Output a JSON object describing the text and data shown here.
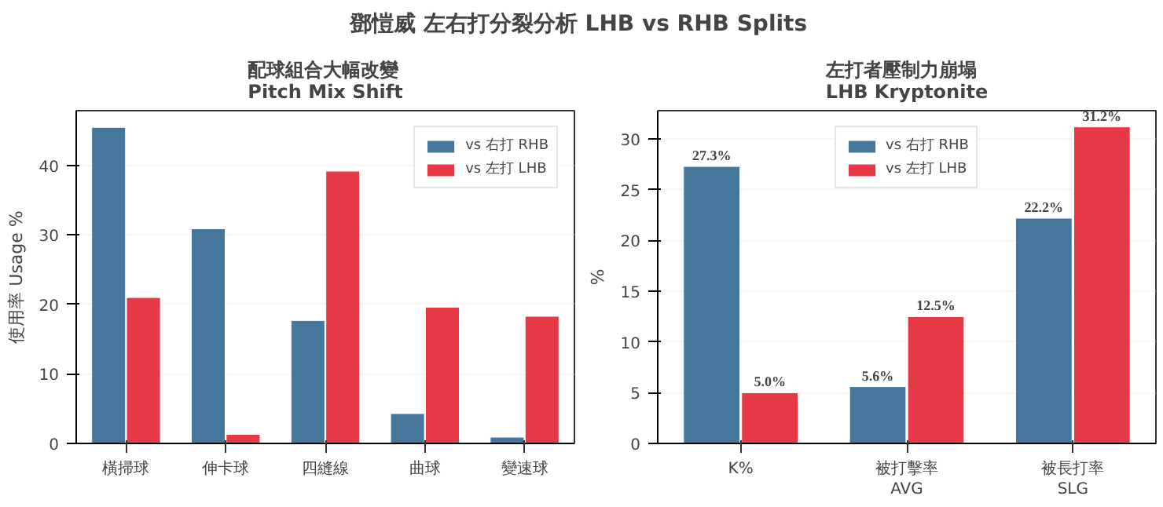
{
  "chart_data": [
    {
      "type": "other",
      "title": "鄧愷威 左右打分裂分析  LHB vs RHB Splits"
    },
    {
      "type": "bar",
      "title": "配球組合大幅改變\nPitch Mix Shift",
      "ylabel": "使用率 Usage %",
      "categories": [
        "橫掃球",
        "伸卡球",
        "四縫線",
        "曲球",
        "變速球"
      ],
      "series": [
        {
          "name": "vs 右打 RHB",
          "color": "#44779b",
          "values": [
            45.5,
            30.9,
            17.7,
            4.3,
            0.9
          ]
        },
        {
          "name": "vs 左打 LHB",
          "color": "#e63946",
          "values": [
            21.0,
            1.3,
            39.2,
            19.6,
            18.3
          ]
        }
      ],
      "ylim": [
        0,
        47.9
      ],
      "yticks": [
        0,
        10,
        20,
        30,
        40
      ],
      "grid": "y",
      "legend": "top right"
    },
    {
      "type": "bar",
      "title": "左打者壓制力崩塌\nLHB Kryptonite",
      "ylabel": "%",
      "categories": [
        "K%",
        "被打擊率\nAVG",
        "被長打率\nSLG"
      ],
      "series": [
        {
          "name": "vs 右打 RHB",
          "color": "#44779b",
          "values": [
            27.3,
            5.6,
            22.2
          ],
          "value_labels": [
            "27.3%",
            "5.6%",
            "22.2%"
          ]
        },
        {
          "name": "vs 左打 LHB",
          "color": "#e63946",
          "values": [
            5.0,
            12.5,
            31.2
          ],
          "value_labels": [
            "5.0%",
            "12.5%",
            "31.2%"
          ]
        }
      ],
      "ylim": [
        0,
        32.8
      ],
      "yticks": [
        0,
        5,
        10,
        15,
        20,
        25,
        30
      ],
      "grid": "y",
      "legend": "top"
    }
  ]
}
